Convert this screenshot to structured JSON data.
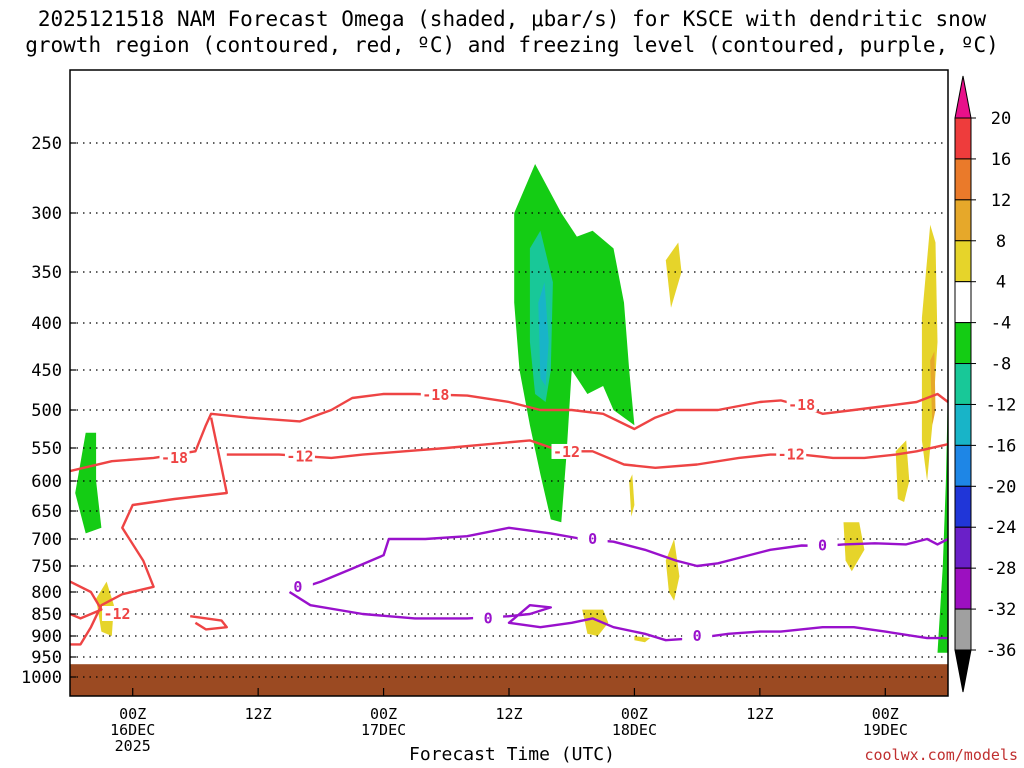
{
  "title_line1": "2025121518 NAM Forecast Omega (shaded, μbar/s) for KSCE with dendritic snow",
  "title_line2": "growth region (contoured, red, ºC) and freezing level (contoured, purple, ºC)",
  "x_axis_title": "Forecast Time (UTC)",
  "credit": "coolwx.com/models",
  "colors": {
    "dendritic_contour": "#ee4444",
    "freezing_contour": "#9911cc",
    "terrain": "#9b4a22"
  },
  "chart_data": {
    "type": "heatmap",
    "title": "2025121518 NAM Forecast Omega (shaded, μbar/s) for KSCE with dendritic snow growth region (contoured, red, ºC) and freezing level (contoured, purple, ºC)",
    "xlabel": "Forecast Time (UTC)",
    "ylabel": "",
    "x_range_hours_from_run": [
      0,
      84
    ],
    "y_axis": "pressure (hPa), reversed, log-like",
    "y_ticks": [
      250,
      300,
      350,
      400,
      450,
      500,
      550,
      600,
      650,
      700,
      750,
      800,
      850,
      900,
      950,
      1000
    ],
    "x_ticks": [
      {
        "hour": 6,
        "label": "00Z",
        "sub": "16DEC",
        "sub2": "2025"
      },
      {
        "hour": 18,
        "label": "12Z",
        "sub": "",
        "sub2": ""
      },
      {
        "hour": 30,
        "label": "00Z",
        "sub": "17DEC",
        "sub2": ""
      },
      {
        "hour": 42,
        "label": "12Z",
        "sub": "",
        "sub2": ""
      },
      {
        "hour": 54,
        "label": "00Z",
        "sub": "18DEC",
        "sub2": ""
      },
      {
        "hour": 66,
        "label": "12Z",
        "sub": "",
        "sub2": ""
      },
      {
        "hour": 78,
        "label": "00Z",
        "sub": "19DEC",
        "sub2": ""
      }
    ],
    "grid": true,
    "colorbar": {
      "levels": [
        "20",
        "16",
        "12",
        "8",
        "4",
        "-4",
        "-8",
        "-12",
        "-16",
        "-20",
        "-24",
        "-28",
        "-32",
        "-36"
      ],
      "bins": [
        {
          "color": "#e8108a"
        },
        {
          "color": "#ee3c3c"
        },
        {
          "color": "#ea7a2a"
        },
        {
          "color": "#e6a82a"
        },
        {
          "color": "#e6d42a"
        },
        {
          "color": "#ffffff"
        },
        {
          "color": "#14cc14"
        },
        {
          "color": "#18c898"
        },
        {
          "color": "#18b4c8"
        },
        {
          "color": "#1e86e6"
        },
        {
          "color": "#2036d8"
        },
        {
          "color": "#6a20c8"
        },
        {
          "color": "#9c10c0"
        },
        {
          "color": "#a0a0a0"
        },
        {
          "color": "#000000"
        }
      ]
    },
    "omega_regions": [
      {
        "level": "-4 to -8",
        "color": "#14cc14",
        "points": [
          [
            1.5,
            530
          ],
          [
            2.5,
            530
          ],
          [
            2.5,
            600
          ],
          [
            3,
            680
          ],
          [
            1.5,
            690
          ],
          [
            0.5,
            620
          ]
        ]
      },
      {
        "level": "-4 to -8",
        "color": "#14cc14",
        "points": [
          [
            42.5,
            300
          ],
          [
            44.5,
            265
          ],
          [
            47,
            300
          ],
          [
            48.5,
            320
          ],
          [
            50,
            315
          ],
          [
            52,
            330
          ],
          [
            53,
            380
          ],
          [
            53.5,
            450
          ],
          [
            54,
            520
          ],
          [
            52,
            500
          ],
          [
            51,
            470
          ],
          [
            49.5,
            480
          ],
          [
            48,
            450
          ],
          [
            47.5,
            560
          ],
          [
            47,
            670
          ],
          [
            46,
            665
          ],
          [
            45,
            590
          ],
          [
            44,
            520
          ],
          [
            43,
            450
          ],
          [
            42.5,
            380
          ]
        ]
      },
      {
        "level": "-8 to -12",
        "color": "#18c898",
        "points": [
          [
            44,
            330
          ],
          [
            45,
            315
          ],
          [
            46.2,
            360
          ],
          [
            46,
            450
          ],
          [
            45.5,
            490
          ],
          [
            44.5,
            480
          ],
          [
            44,
            420
          ]
        ]
      },
      {
        "level": "-12 to -16",
        "color": "#18b4c8",
        "points": [
          [
            44.8,
            380
          ],
          [
            45.4,
            360
          ],
          [
            45.8,
            420
          ],
          [
            45.5,
            470
          ],
          [
            45,
            460
          ]
        ]
      },
      {
        "level": "-4 to -8",
        "color": "#14cc14",
        "points": [
          [
            84,
            470
          ],
          [
            84,
            940
          ],
          [
            83,
            940
          ],
          [
            83.5,
            750
          ],
          [
            83.8,
            600
          ]
        ]
      },
      {
        "level": "4 to 8",
        "color": "#e6d42a",
        "points": [
          [
            57,
            340
          ],
          [
            58.2,
            325
          ],
          [
            58.5,
            350
          ],
          [
            57.5,
            385
          ]
        ]
      },
      {
        "level": "4 to 8",
        "color": "#e6d42a",
        "points": [
          [
            81.5,
            395
          ],
          [
            82.3,
            310
          ],
          [
            82.8,
            325
          ],
          [
            83,
            420
          ],
          [
            82.5,
            520
          ],
          [
            82,
            600
          ],
          [
            81.5,
            540
          ]
        ]
      },
      {
        "level": "4 to 8",
        "color": "#e6d42a",
        "points": [
          [
            79,
            555
          ],
          [
            80,
            540
          ],
          [
            80.3,
            600
          ],
          [
            79.8,
            635
          ],
          [
            79.2,
            630
          ]
        ]
      },
      {
        "level": "4 to 8",
        "color": "#e6d42a",
        "points": [
          [
            74,
            670
          ],
          [
            75.5,
            670
          ],
          [
            76,
            720
          ],
          [
            74.8,
            760
          ],
          [
            74.2,
            740
          ]
        ]
      },
      {
        "level": "4 to 8",
        "color": "#e6d42a",
        "points": [
          [
            57,
            740
          ],
          [
            57.8,
            700
          ],
          [
            58.3,
            770
          ],
          [
            57.8,
            820
          ],
          [
            57.3,
            800
          ]
        ]
      },
      {
        "level": "4 to 8",
        "color": "#e6d42a",
        "points": [
          [
            2.5,
            815
          ],
          [
            3.5,
            780
          ],
          [
            4.2,
            830
          ],
          [
            4,
            900
          ],
          [
            3,
            890
          ]
        ]
      },
      {
        "level": "4 to 8",
        "color": "#e6d42a",
        "points": [
          [
            49,
            840
          ],
          [
            51,
            840
          ],
          [
            51.5,
            870
          ],
          [
            50.5,
            900
          ],
          [
            49.5,
            895
          ]
        ]
      },
      {
        "level": "4 to 8",
        "color": "#e6d42a",
        "points": [
          [
            53.5,
            600
          ],
          [
            53.8,
            590
          ],
          [
            54,
            640
          ],
          [
            53.7,
            660
          ]
        ]
      },
      {
        "level": "4 to 8",
        "color": "#e6d42a",
        "points": [
          [
            54,
            900
          ],
          [
            55.5,
            905
          ],
          [
            55,
            915
          ],
          [
            54,
            910
          ]
        ]
      },
      {
        "level": "8 to 12",
        "color": "#e6a82a",
        "points": [
          [
            82.3,
            440
          ],
          [
            82.7,
            430
          ],
          [
            82.8,
            500
          ],
          [
            82.5,
            520
          ]
        ]
      }
    ],
    "contours": [
      {
        "label": "-18",
        "color": "dendritic",
        "points": [
          [
            0,
            585
          ],
          [
            4,
            570
          ],
          [
            8,
            565
          ],
          [
            12,
            555
          ],
          [
            13,
            520
          ],
          [
            13.5,
            505
          ],
          [
            17,
            510
          ],
          [
            22,
            515
          ],
          [
            25,
            500
          ],
          [
            27,
            485
          ],
          [
            30,
            480
          ],
          [
            33,
            480
          ],
          [
            38,
            482
          ],
          [
            42,
            490
          ],
          [
            45,
            500
          ],
          [
            48,
            500
          ],
          [
            51,
            505
          ],
          [
            54,
            525
          ],
          [
            56,
            510
          ],
          [
            58,
            500
          ],
          [
            62,
            500
          ],
          [
            66,
            490
          ],
          [
            68,
            488
          ],
          [
            70,
            495
          ],
          [
            72,
            505
          ],
          [
            75,
            500
          ],
          [
            78,
            495
          ],
          [
            81,
            490
          ],
          [
            83,
            480
          ],
          [
            84,
            490
          ]
        ],
        "labels": [
          {
            "x": 10,
            "y": 565,
            "text": "-18"
          },
          {
            "x": 35,
            "y": 481,
            "text": "-18"
          },
          {
            "x": 70,
            "y": 494,
            "text": "-18"
          }
        ]
      },
      {
        "label": "-12",
        "color": "dendritic",
        "points": [
          [
            13.5,
            510
          ],
          [
            14.5,
            580
          ],
          [
            15,
            620
          ],
          [
            10,
            630
          ],
          [
            6,
            640
          ],
          [
            5,
            680
          ],
          [
            7,
            740
          ],
          [
            8,
            790
          ],
          [
            5,
            805
          ],
          [
            3,
            830
          ],
          [
            2,
            880
          ],
          [
            1,
            920
          ],
          [
            0,
            920
          ]
        ],
        "labels": [
          {
            "x": 4.5,
            "y": 850,
            "text": "-12"
          }
        ]
      },
      {
        "label": "-12",
        "color": "dendritic",
        "points": [
          [
            15,
            560
          ],
          [
            20,
            560
          ],
          [
            25,
            565
          ],
          [
            28,
            560
          ],
          [
            32,
            555
          ],
          [
            36,
            550
          ],
          [
            40,
            545
          ],
          [
            44,
            540
          ],
          [
            47,
            555
          ],
          [
            50,
            555
          ],
          [
            53,
            575
          ],
          [
            56,
            580
          ],
          [
            60,
            575
          ],
          [
            64,
            565
          ],
          [
            67,
            560
          ],
          [
            70,
            560
          ],
          [
            73,
            565
          ],
          [
            76,
            565
          ],
          [
            79,
            560
          ],
          [
            81,
            555
          ],
          [
            84,
            545
          ]
        ],
        "labels": [
          {
            "x": 22,
            "y": 563,
            "text": "-12"
          },
          {
            "x": 47.5,
            "y": 556,
            "text": "-12"
          },
          {
            "x": 69,
            "y": 560,
            "text": "-12"
          }
        ]
      },
      {
        "label": "-12",
        "color": "dendritic",
        "points": [
          [
            0,
            780
          ],
          [
            2,
            800
          ],
          [
            3,
            840
          ],
          [
            1,
            860
          ],
          [
            0,
            850
          ]
        ],
        "labels": []
      },
      {
        "label": "-12",
        "color": "dendritic",
        "points": [
          [
            11.5,
            855
          ],
          [
            14.5,
            865
          ],
          [
            15,
            880
          ],
          [
            13,
            885
          ],
          [
            12,
            870
          ]
        ],
        "labels": []
      },
      {
        "label": "0",
        "color": "freezing",
        "points": [
          [
            21,
            800
          ],
          [
            24,
            780
          ],
          [
            27,
            755
          ],
          [
            30,
            730
          ],
          [
            30.5,
            700
          ],
          [
            34,
            700
          ],
          [
            38,
            695
          ],
          [
            42,
            680
          ],
          [
            46,
            690
          ],
          [
            49,
            700
          ],
          [
            52,
            705
          ],
          [
            55,
            720
          ],
          [
            58,
            740
          ],
          [
            60,
            750
          ],
          [
            62,
            745
          ],
          [
            64,
            735
          ],
          [
            67,
            720
          ],
          [
            70,
            712
          ],
          [
            72,
            713
          ],
          [
            74,
            710
          ],
          [
            77,
            708
          ],
          [
            80,
            710
          ],
          [
            82,
            700
          ],
          [
            83,
            710
          ],
          [
            84,
            700
          ]
        ],
        "labels": [
          {
            "x": 21.8,
            "y": 790,
            "text": "0"
          },
          {
            "x": 50,
            "y": 700,
            "text": "0"
          },
          {
            "x": 72,
            "y": 712,
            "text": "0"
          }
        ]
      },
      {
        "label": "0",
        "color": "freezing",
        "points": [
          [
            21,
            800
          ],
          [
            23,
            830
          ],
          [
            28,
            850
          ],
          [
            33,
            860
          ],
          [
            38,
            860
          ],
          [
            42,
            855
          ],
          [
            44,
            850
          ],
          [
            46,
            835
          ],
          [
            44,
            830
          ],
          [
            43,
            850
          ],
          [
            42,
            870
          ],
          [
            45,
            880
          ],
          [
            48,
            870
          ],
          [
            50,
            860
          ],
          [
            52,
            880
          ],
          [
            55,
            895
          ],
          [
            57,
            910
          ],
          [
            60,
            905
          ],
          [
            63,
            895
          ],
          [
            66,
            890
          ],
          [
            68,
            890
          ],
          [
            72,
            880
          ],
          [
            75,
            880
          ],
          [
            78,
            890
          ],
          [
            82,
            905
          ],
          [
            84,
            905
          ]
        ],
        "labels": [
          {
            "x": 40,
            "y": 860,
            "text": "0"
          },
          {
            "x": 60,
            "y": 900,
            "text": "0"
          }
        ]
      }
    ],
    "terrain": {
      "label": "surface",
      "top_pressure": 968
    }
  }
}
